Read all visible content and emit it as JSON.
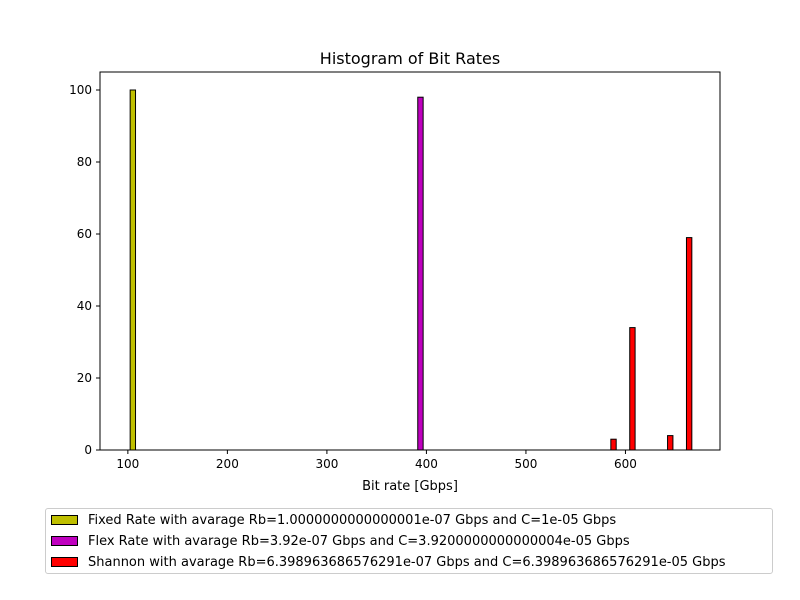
{
  "chart_data": {
    "type": "bar",
    "title": "Histogram of Bit Rates",
    "xlabel": "Bit rate [Gbps]",
    "ylabel": "",
    "xlim": [
      72,
      695
    ],
    "ylim": [
      0,
      105
    ],
    "xticks": [
      100,
      200,
      300,
      400,
      500,
      600
    ],
    "yticks": [
      0,
      20,
      40,
      60,
      80,
      100
    ],
    "grid": false,
    "legend_position": "bottom",
    "bin_width": 5.4,
    "series": [
      {
        "name": "Fixed Rate with avarage Rb=1.0000000000000001e-07 Gbps and C=1e-05 Gbps",
        "color": "#bfbf00",
        "bars": [
          {
            "x": 105,
            "y": 100
          }
        ]
      },
      {
        "name": "Flex Rate with avarage Rb=3.92e-07 Gbps and C=3.9200000000000004e-05 Gbps",
        "color": "#bf00bf",
        "bars": [
          {
            "x": 394,
            "y": 98
          }
        ]
      },
      {
        "name": "Shannon with avarage Rb=6.398963686576291e-07 Gbps and C=6.398963686576291e-05 Gbps",
        "color": "#ff0000",
        "bars": [
          {
            "x": 588,
            "y": 3
          },
          {
            "x": 607,
            "y": 34
          },
          {
            "x": 645,
            "y": 4
          },
          {
            "x": 664,
            "y": 59
          }
        ]
      }
    ]
  }
}
